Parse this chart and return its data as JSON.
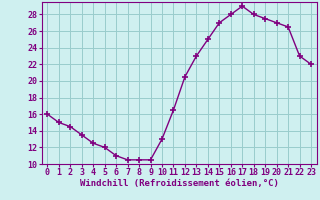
{
  "x": [
    0,
    1,
    2,
    3,
    4,
    5,
    6,
    7,
    8,
    9,
    10,
    11,
    12,
    13,
    14,
    15,
    16,
    17,
    18,
    19,
    20,
    21,
    22,
    23
  ],
  "y_values": [
    16,
    15,
    14.5,
    13.5,
    12.5,
    12,
    11,
    10.5,
    10.5,
    10.5,
    13,
    16.5,
    20.5,
    23,
    25,
    27,
    28,
    29,
    28,
    27.5,
    27,
    26.5,
    23,
    22
  ],
  "xlabel": "Windchill (Refroidissement éolien,°C)",
  "ylim": [
    10,
    29.5
  ],
  "xlim": [
    -0.5,
    23.5
  ],
  "yticks": [
    10,
    12,
    14,
    16,
    18,
    20,
    22,
    24,
    26,
    28
  ],
  "xticks": [
    0,
    1,
    2,
    3,
    4,
    5,
    6,
    7,
    8,
    9,
    10,
    11,
    12,
    13,
    14,
    15,
    16,
    17,
    18,
    19,
    20,
    21,
    22,
    23
  ],
  "line_color": "#800080",
  "bg_color": "#cff0f0",
  "grid_color": "#99cccc",
  "marker": "+",
  "markersize": 4,
  "markeredgewidth": 1.2,
  "linewidth": 1.0,
  "xlabel_fontsize": 6.5,
  "tick_fontsize": 6
}
